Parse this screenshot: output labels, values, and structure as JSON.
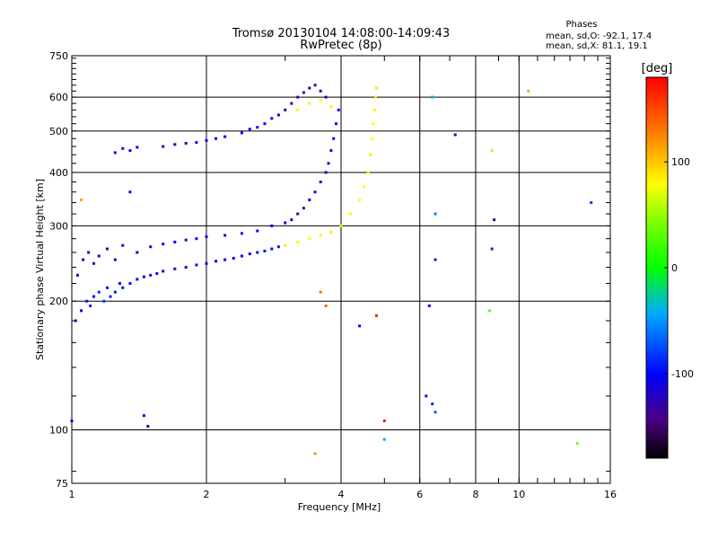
{
  "header": {
    "title_line1": "Tromsø 20130104 14:08:00-14:09:43",
    "title_line2": "RwPretec (8p)"
  },
  "phase_stats": {
    "heading": "Phases",
    "o_line": "mean, sd,O: -92.1, 17.4",
    "x_line": "mean, sd,X:  81.1, 19.1"
  },
  "colorbar": {
    "unit": "[deg]",
    "range": [
      -180,
      180
    ],
    "ticks": [
      {
        "value": 100,
        "label": "100"
      },
      {
        "value": 0,
        "label": "0"
      },
      {
        "value": -100,
        "label": "-100"
      }
    ]
  },
  "chart_data": {
    "type": "scatter",
    "xlabel": "Frequency [MHz]",
    "ylabel": "Stationary phase Virtual Height [km]",
    "x_scale": "log",
    "y_scale": "log",
    "xlim": [
      1,
      16
    ],
    "ylim": [
      75,
      750
    ],
    "x_ticks": [
      {
        "value": 1,
        "label": "1"
      },
      {
        "value": 2,
        "label": "2"
      },
      {
        "value": 4,
        "label": "4"
      },
      {
        "value": 6,
        "label": "6"
      },
      {
        "value": 8,
        "label": "8"
      },
      {
        "value": 10,
        "label": "10"
      },
      {
        "value": 16,
        "label": "16"
      }
    ],
    "y_ticks": [
      {
        "value": 75,
        "label": "75"
      },
      {
        "value": 100,
        "label": "100"
      },
      {
        "value": 200,
        "label": "200"
      },
      {
        "value": 300,
        "label": "300"
      },
      {
        "value": 400,
        "label": "400"
      },
      {
        "value": 500,
        "label": "500"
      },
      {
        "value": 600,
        "label": "600"
      },
      {
        "value": 750,
        "label": "750"
      }
    ],
    "x_grid": [
      2,
      4,
      6,
      8,
      10
    ],
    "y_grid": [
      100,
      200,
      300,
      400,
      500,
      600
    ],
    "series": [
      {
        "color_by": "phase",
        "points": [
          {
            "x": 1.02,
            "y": 180,
            "phase": -105
          },
          {
            "x": 1.05,
            "y": 190,
            "phase": -110
          },
          {
            "x": 1.08,
            "y": 200,
            "phase": -95
          },
          {
            "x": 1.1,
            "y": 195,
            "phase": -90
          },
          {
            "x": 1.12,
            "y": 205,
            "phase": -100
          },
          {
            "x": 1.15,
            "y": 210,
            "phase": -85
          },
          {
            "x": 1.18,
            "y": 200,
            "phase": -80
          },
          {
            "x": 1.2,
            "y": 215,
            "phase": -95
          },
          {
            "x": 1.22,
            "y": 205,
            "phase": -88
          },
          {
            "x": 1.25,
            "y": 210,
            "phase": -92
          },
          {
            "x": 1.28,
            "y": 220,
            "phase": -100
          },
          {
            "x": 1.3,
            "y": 215,
            "phase": -90
          },
          {
            "x": 1.35,
            "y": 220,
            "phase": -96
          },
          {
            "x": 1.4,
            "y": 225,
            "phase": -105
          },
          {
            "x": 1.45,
            "y": 228,
            "phase": -110
          },
          {
            "x": 1.5,
            "y": 230,
            "phase": -108
          },
          {
            "x": 1.55,
            "y": 232,
            "phase": -112
          },
          {
            "x": 1.6,
            "y": 235,
            "phase": -115
          },
          {
            "x": 1.7,
            "y": 238,
            "phase": -110
          },
          {
            "x": 1.8,
            "y": 240,
            "phase": -112
          },
          {
            "x": 1.9,
            "y": 243,
            "phase": -108
          },
          {
            "x": 2.0,
            "y": 245,
            "phase": -110
          },
          {
            "x": 2.1,
            "y": 248,
            "phase": -105
          },
          {
            "x": 2.2,
            "y": 250,
            "phase": -108
          },
          {
            "x": 2.3,
            "y": 252,
            "phase": -104
          },
          {
            "x": 2.4,
            "y": 255,
            "phase": -100
          },
          {
            "x": 2.5,
            "y": 258,
            "phase": -102
          },
          {
            "x": 2.6,
            "y": 260,
            "phase": -98
          },
          {
            "x": 2.7,
            "y": 262,
            "phase": -96
          },
          {
            "x": 2.8,
            "y": 265,
            "phase": -94
          },
          {
            "x": 2.9,
            "y": 268,
            "phase": -92
          },
          {
            "x": 1.03,
            "y": 230,
            "phase": -112
          },
          {
            "x": 1.06,
            "y": 250,
            "phase": -115
          },
          {
            "x": 1.09,
            "y": 260,
            "phase": -110
          },
          {
            "x": 1.12,
            "y": 245,
            "phase": -118
          },
          {
            "x": 1.15,
            "y": 255,
            "phase": -114
          },
          {
            "x": 1.2,
            "y": 265,
            "phase": -116
          },
          {
            "x": 1.25,
            "y": 250,
            "phase": -110
          },
          {
            "x": 1.3,
            "y": 270,
            "phase": -112
          },
          {
            "x": 1.4,
            "y": 260,
            "phase": -108
          },
          {
            "x": 1.5,
            "y": 268,
            "phase": -105
          },
          {
            "x": 1.6,
            "y": 272,
            "phase": -110
          },
          {
            "x": 1.7,
            "y": 275,
            "phase": -108
          },
          {
            "x": 1.8,
            "y": 278,
            "phase": -104
          },
          {
            "x": 1.9,
            "y": 280,
            "phase": -100
          },
          {
            "x": 2.0,
            "y": 283,
            "phase": -106
          },
          {
            "x": 2.2,
            "y": 285,
            "phase": -100
          },
          {
            "x": 2.4,
            "y": 288,
            "phase": -96
          },
          {
            "x": 2.6,
            "y": 292,
            "phase": -98
          },
          {
            "x": 2.8,
            "y": 300,
            "phase": -100
          },
          {
            "x": 3.0,
            "y": 305,
            "phase": -110
          },
          {
            "x": 1.25,
            "y": 445,
            "phase": -110
          },
          {
            "x": 1.3,
            "y": 455,
            "phase": -115
          },
          {
            "x": 1.35,
            "y": 450,
            "phase": -112
          },
          {
            "x": 1.4,
            "y": 458,
            "phase": -108
          },
          {
            "x": 1.6,
            "y": 460,
            "phase": -110
          },
          {
            "x": 1.7,
            "y": 465,
            "phase": -112
          },
          {
            "x": 1.8,
            "y": 468,
            "phase": -108
          },
          {
            "x": 1.9,
            "y": 470,
            "phase": -105
          },
          {
            "x": 2.0,
            "y": 475,
            "phase": -100
          },
          {
            "x": 2.1,
            "y": 480,
            "phase": -104
          },
          {
            "x": 2.2,
            "y": 485,
            "phase": -106
          },
          {
            "x": 2.4,
            "y": 495,
            "phase": -102
          },
          {
            "x": 2.5,
            "y": 505,
            "phase": -100
          },
          {
            "x": 2.6,
            "y": 510,
            "phase": -104
          },
          {
            "x": 2.7,
            "y": 520,
            "phase": -108
          },
          {
            "x": 2.8,
            "y": 535,
            "phase": -110
          },
          {
            "x": 2.9,
            "y": 545,
            "phase": -112
          },
          {
            "x": 3.0,
            "y": 560,
            "phase": -125
          },
          {
            "x": 3.1,
            "y": 580,
            "phase": -130
          },
          {
            "x": 3.2,
            "y": 600,
            "phase": -128
          },
          {
            "x": 3.3,
            "y": 615,
            "phase": -132
          },
          {
            "x": 3.4,
            "y": 630,
            "phase": -130
          },
          {
            "x": 3.5,
            "y": 640,
            "phase": -125
          },
          {
            "x": 3.6,
            "y": 620,
            "phase": -128
          },
          {
            "x": 3.7,
            "y": 600,
            "phase": -122
          },
          {
            "x": 3.1,
            "y": 310,
            "phase": -118
          },
          {
            "x": 3.2,
            "y": 320,
            "phase": -120
          },
          {
            "x": 3.3,
            "y": 330,
            "phase": -122
          },
          {
            "x": 3.4,
            "y": 345,
            "phase": -118
          },
          {
            "x": 3.5,
            "y": 360,
            "phase": -115
          },
          {
            "x": 3.6,
            "y": 380,
            "phase": -118
          },
          {
            "x": 3.7,
            "y": 400,
            "phase": -120
          },
          {
            "x": 3.75,
            "y": 420,
            "phase": -118
          },
          {
            "x": 3.8,
            "y": 450,
            "phase": -115
          },
          {
            "x": 3.85,
            "y": 480,
            "phase": -112
          },
          {
            "x": 3.9,
            "y": 520,
            "phase": -110
          },
          {
            "x": 3.95,
            "y": 560,
            "phase": -108
          },
          {
            "x": 3.0,
            "y": 270,
            "phase": 85
          },
          {
            "x": 3.2,
            "y": 275,
            "phase": 80
          },
          {
            "x": 3.4,
            "y": 280,
            "phase": 78
          },
          {
            "x": 3.6,
            "y": 285,
            "phase": 82
          },
          {
            "x": 3.8,
            "y": 290,
            "phase": 86
          },
          {
            "x": 4.0,
            "y": 300,
            "phase": 84
          },
          {
            "x": 4.2,
            "y": 320,
            "phase": 80
          },
          {
            "x": 4.4,
            "y": 345,
            "phase": 78
          },
          {
            "x": 4.5,
            "y": 370,
            "phase": 82
          },
          {
            "x": 4.6,
            "y": 400,
            "phase": 84
          },
          {
            "x": 4.65,
            "y": 440,
            "phase": 86
          },
          {
            "x": 4.7,
            "y": 480,
            "phase": 80
          },
          {
            "x": 4.72,
            "y": 520,
            "phase": 82
          },
          {
            "x": 4.75,
            "y": 560,
            "phase": 85
          },
          {
            "x": 4.78,
            "y": 600,
            "phase": 88
          },
          {
            "x": 4.8,
            "y": 630,
            "phase": 90
          },
          {
            "x": 3.2,
            "y": 560,
            "phase": 82
          },
          {
            "x": 3.4,
            "y": 580,
            "phase": 85
          },
          {
            "x": 3.6,
            "y": 590,
            "phase": 80
          },
          {
            "x": 3.8,
            "y": 570,
            "phase": 84
          },
          {
            "x": 1.0,
            "y": 105,
            "phase": -110
          },
          {
            "x": 1.45,
            "y": 108,
            "phase": -110
          },
          {
            "x": 1.48,
            "y": 102,
            "phase": -120
          },
          {
            "x": 6.3,
            "y": 195,
            "phase": -100
          },
          {
            "x": 6.5,
            "y": 250,
            "phase": -90
          },
          {
            "x": 6.5,
            "y": 320,
            "phase": -60
          },
          {
            "x": 6.4,
            "y": 600,
            "phase": -40
          },
          {
            "x": 7.2,
            "y": 490,
            "phase": -130
          },
          {
            "x": 8.7,
            "y": 450,
            "phase": 60
          },
          {
            "x": 8.8,
            "y": 310,
            "phase": -120
          },
          {
            "x": 8.7,
            "y": 265,
            "phase": -90
          },
          {
            "x": 8.6,
            "y": 190,
            "phase": 30
          },
          {
            "x": 10.5,
            "y": 620,
            "phase": 110
          },
          {
            "x": 14.5,
            "y": 340,
            "phase": -80
          },
          {
            "x": 13.5,
            "y": 93,
            "phase": 40
          },
          {
            "x": 5.0,
            "y": 105,
            "phase": 170
          },
          {
            "x": 5.0,
            "y": 95,
            "phase": -40
          },
          {
            "x": 4.8,
            "y": 185,
            "phase": 170
          },
          {
            "x": 4.4,
            "y": 175,
            "phase": -100
          },
          {
            "x": 3.6,
            "y": 210,
            "phase": 130
          },
          {
            "x": 3.5,
            "y": 88,
            "phase": 120
          },
          {
            "x": 6.2,
            "y": 120,
            "phase": -110
          },
          {
            "x": 6.4,
            "y": 115,
            "phase": -90
          },
          {
            "x": 6.5,
            "y": 110,
            "phase": -70
          },
          {
            "x": 3.7,
            "y": 195,
            "phase": 140
          },
          {
            "x": 1.35,
            "y": 360,
            "phase": -110
          },
          {
            "x": 1.05,
            "y": 345,
            "phase": 110
          }
        ]
      }
    ]
  }
}
